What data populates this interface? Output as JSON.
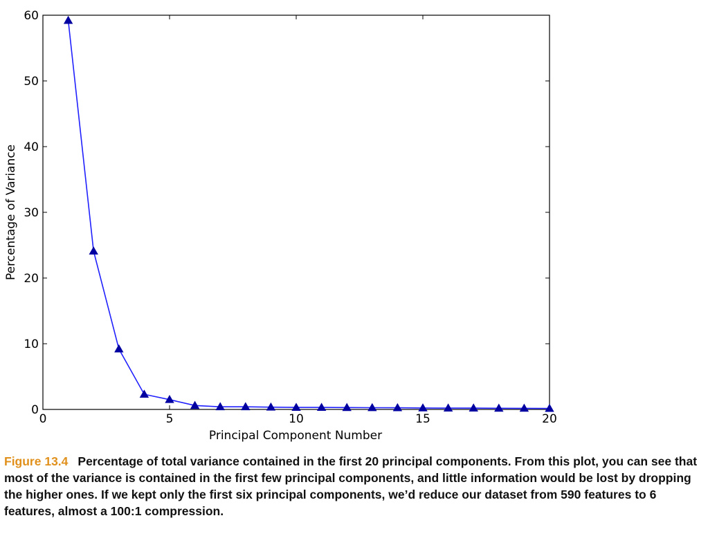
{
  "chart_data": {
    "type": "line",
    "title": "",
    "xlabel": "Principal Component Number",
    "ylabel": "Percentage of Variance",
    "xlim": [
      0,
      20
    ],
    "ylim": [
      0,
      60
    ],
    "xticks": [
      0,
      5,
      10,
      15,
      20
    ],
    "yticks": [
      0,
      10,
      20,
      30,
      40,
      50,
      60
    ],
    "grid": false,
    "marker": "triangle",
    "line_color": "#1f1fff",
    "marker_color": "#0000a0",
    "series": [
      {
        "x": [
          1,
          2,
          3,
          4,
          5,
          6,
          7,
          8,
          9,
          10,
          11,
          12,
          13,
          14,
          15,
          16,
          17,
          18,
          19,
          20
        ],
        "values": [
          59.2,
          24.1,
          9.2,
          2.3,
          1.5,
          0.6,
          0.4,
          0.4,
          0.35,
          0.3,
          0.3,
          0.28,
          0.26,
          0.25,
          0.22,
          0.2,
          0.2,
          0.18,
          0.17,
          0.15
        ]
      }
    ]
  },
  "caption": {
    "label": "Figure 13.4",
    "text": "Percentage of total variance contained in the first 20 principal components. From this plot, you can see that most of the variance is contained in the first few principal components, and little information would be lost by dropping the higher ones. If we kept only the first six principal components, we’d reduce our dataset from 590 features to 6 features, almost a 100:1 compression."
  }
}
